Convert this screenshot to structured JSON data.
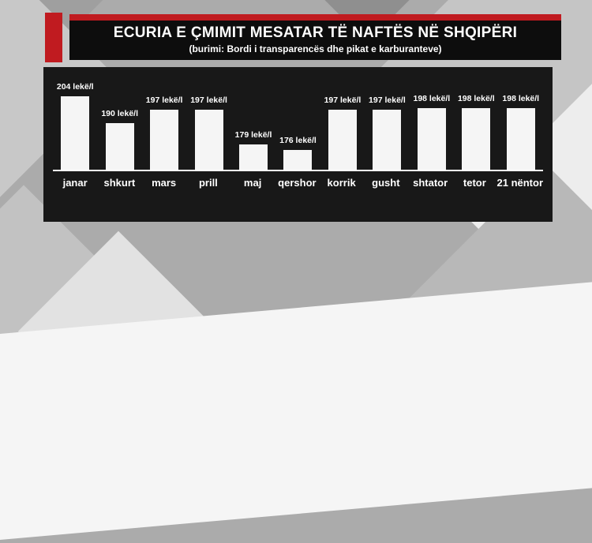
{
  "header": {
    "title": "ECURIA E ÇMIMIT MESATAR TË NAFTËS NË SHQIPËRI",
    "subtitle": "(burimi: Bordi i transparencës dhe pikat e karburanteve)",
    "accent_color": "#c01b20",
    "box_color": "#0d0d0d",
    "text_color": "#ffffff"
  },
  "chart_data": {
    "type": "bar",
    "title": "ECURIA E ÇMIMIT MESATAR TË NAFTËS NË SHQIPËRI",
    "categories": [
      "janar",
      "shkurt",
      "mars",
      "prill",
      "maj",
      "qershor",
      "korrik",
      "gusht",
      "shtator",
      "tetor",
      "21 nëntor"
    ],
    "values": [
      204,
      190,
      197,
      197,
      179,
      176,
      197,
      197,
      198,
      198,
      198
    ],
    "labels": [
      "204 lekë/l",
      "190 lekë/l",
      "197 lekë/l",
      "197 lekë/l",
      "179 lekë/l",
      "176 lekë/l",
      "197 lekë/l",
      "197 lekë/l",
      "198 lekë/l",
      "198 lekë/l",
      "198 lekë/l"
    ],
    "unit": "lekë/l",
    "xlabel": "",
    "ylabel": "",
    "ylim": [
      170,
      210
    ],
    "grid": false,
    "legend": "none",
    "bar_color": "#f5f5f5",
    "panel_color": "#181818",
    "axis_color": "#ffffff"
  },
  "background": {
    "base_color": "#ababab",
    "shape_colors": [
      "#9f9f9f",
      "#c8c8c8",
      "#8f8f8f",
      "#9b9b9b",
      "#c5c5c5",
      "#ededed",
      "#b8b8b8",
      "#c2c2c2",
      "#e2e2e2",
      "#f5f5f5"
    ]
  }
}
